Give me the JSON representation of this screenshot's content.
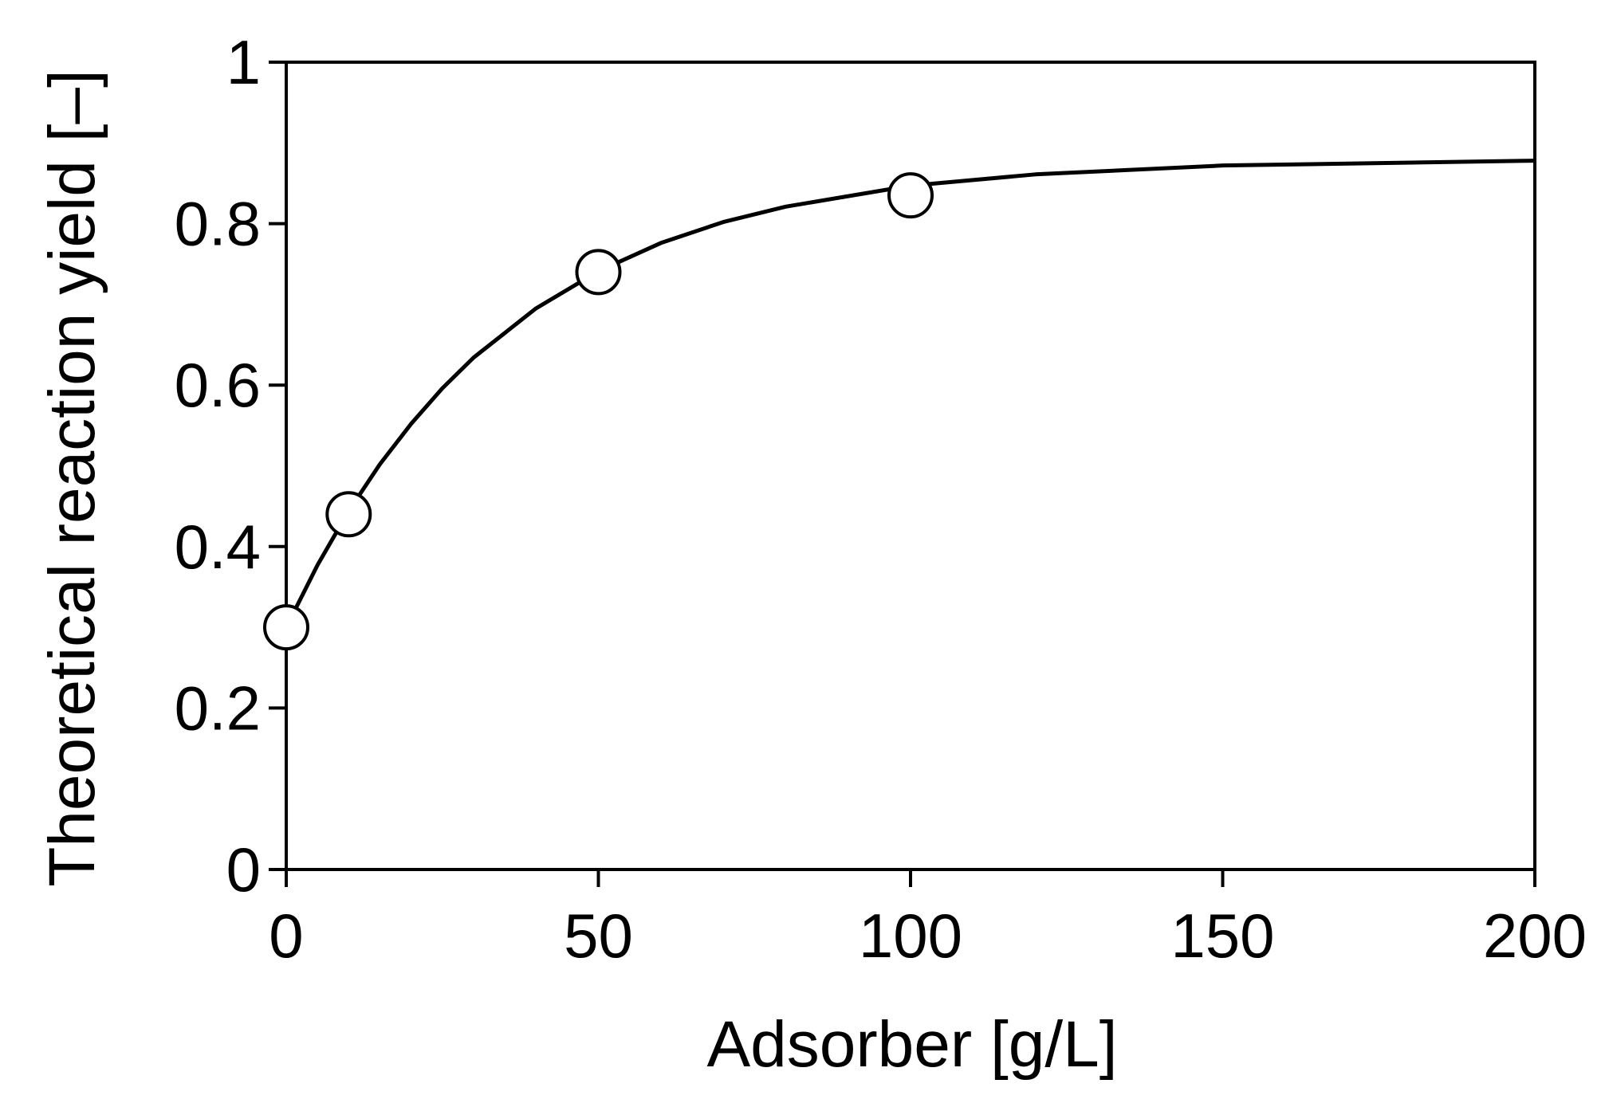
{
  "chart_data": {
    "type": "scatter",
    "x_label": "Adsorber [g/L]",
    "y_label": "Theoretical reaction yield [–]",
    "xlim": [
      0,
      200
    ],
    "xticks": [
      0,
      50,
      100,
      150,
      200
    ],
    "ylim": [
      0,
      1
    ],
    "yticks": [
      0,
      0.2,
      0.4,
      0.6,
      0.8,
      1
    ],
    "grid": false,
    "series": [
      {
        "style": "line",
        "color": "#000000",
        "x": [
          0,
          5,
          10,
          15,
          20,
          25,
          30,
          40,
          50,
          60,
          70,
          80,
          100,
          120,
          150,
          200
        ],
        "values": [
          0.3,
          0.377,
          0.444,
          0.502,
          0.552,
          0.596,
          0.634,
          0.695,
          0.741,
          0.776,
          0.802,
          0.821,
          0.847,
          0.861,
          0.872,
          0.878
        ]
      },
      {
        "style": "markers",
        "color": "#ffffff",
        "x": [
          0,
          10,
          50,
          100
        ],
        "values": [
          0.3,
          0.44,
          0.74,
          0.835
        ]
      }
    ]
  }
}
